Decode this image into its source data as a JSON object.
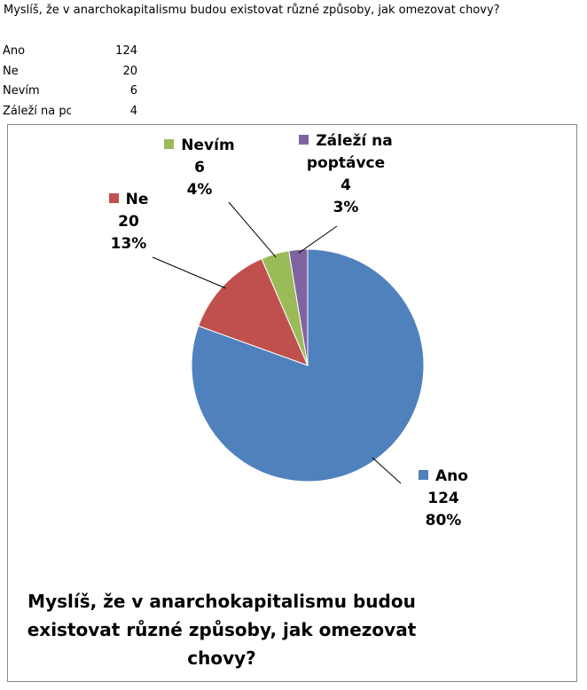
{
  "header": {
    "title": "Myslíš, že v anarchokapitalismu budou existovat různé způsoby, jak omezovat chovy?"
  },
  "chart_data": {
    "type": "pie",
    "title": "Myslíš, že v anarchokapitalismu budou existovat různé způsoby, jak omezovat chovy?",
    "categories": [
      "Ano",
      "Ne",
      "Nevím",
      "Záleží na poptávce"
    ],
    "values": [
      124,
      20,
      6,
      4
    ],
    "percent_labels": [
      "80%",
      "13%",
      "4%",
      "3%"
    ],
    "colors": [
      "#4f81bd",
      "#c0504d",
      "#9bbb59",
      "#8064a2"
    ]
  }
}
